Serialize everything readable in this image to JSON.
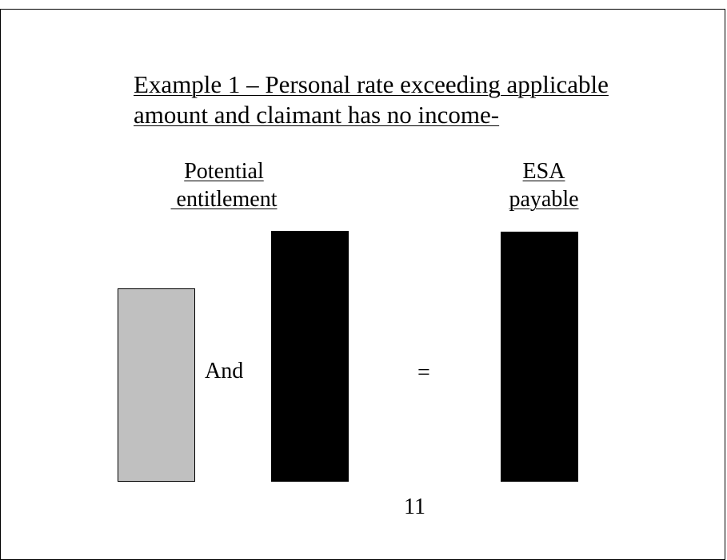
{
  "slide": {
    "title_lines": [
      "Example 1 – Personal rate exceeding applicable",
      "amount and claimant has no income-"
    ],
    "left_heading_lines": [
      "Potential",
      " entitlement"
    ],
    "right_heading_lines": [
      "ESA",
      "payable"
    ],
    "connector_word": "And",
    "equals_sign": "=",
    "page_number": "11"
  },
  "colors": {
    "light_bar": "#c0c0c0",
    "dark_bar": "#000000",
    "border": "#000000",
    "background": "#ffffff"
  }
}
